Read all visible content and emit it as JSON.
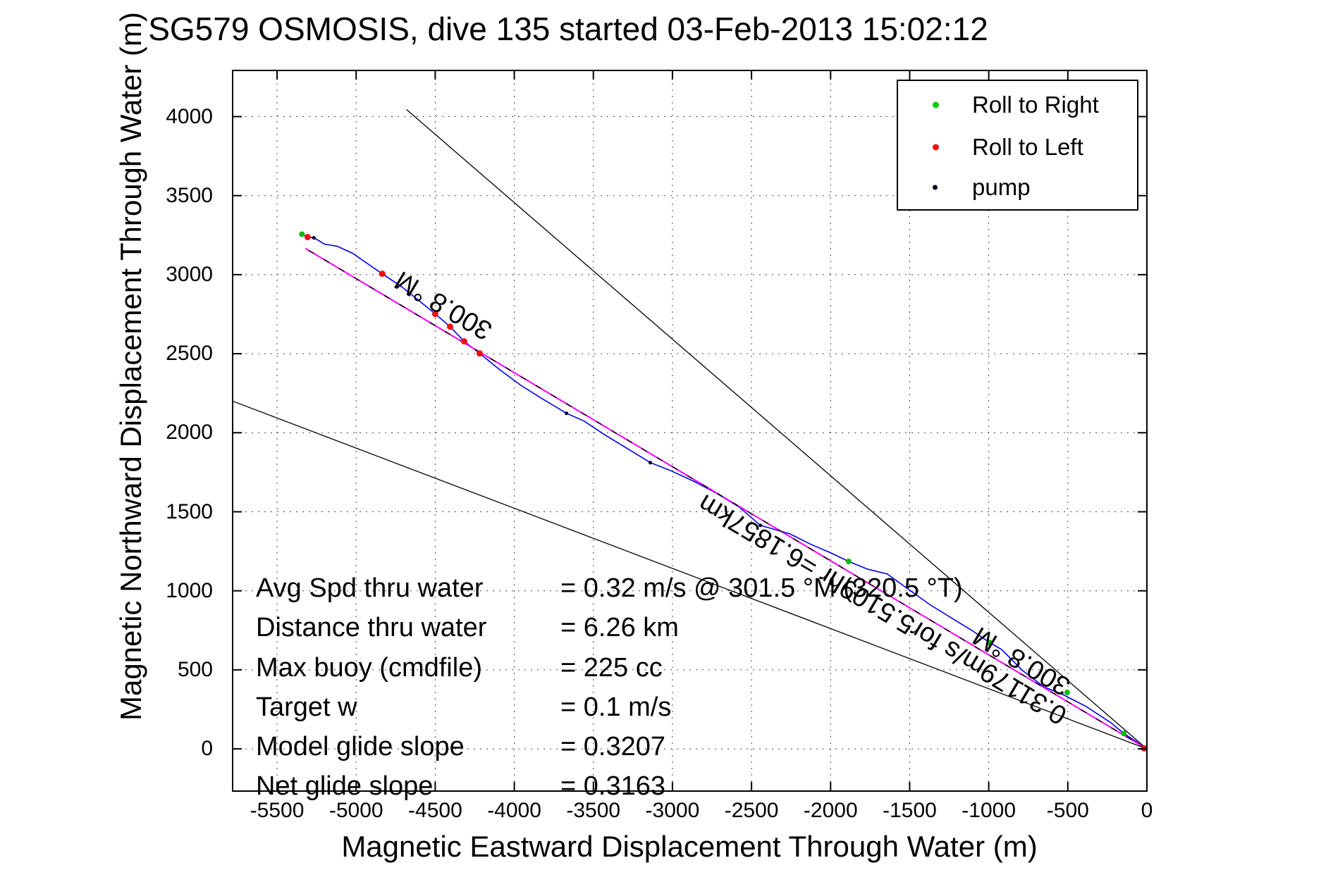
{
  "title": "SG579 OSMOSIS, dive 135 started 03-Feb-2013 15:02:12",
  "axes": {
    "xlabel": "Magnetic Eastward Displacement Through Water (m)",
    "ylabel": "Magnetic Northward Displacement Through Water (m)",
    "xticks": [
      -5500,
      -5000,
      -4500,
      -4000,
      -3500,
      -3000,
      -2500,
      -2000,
      -1500,
      -1000,
      -500,
      0
    ],
    "yticks": [
      0,
      500,
      1000,
      1500,
      2000,
      2500,
      3000,
      3500,
      4000
    ],
    "xlim": [
      -5781,
      0
    ],
    "ylim": [
      -267,
      4292
    ],
    "grid": true
  },
  "legend": {
    "items": [
      {
        "label": "Roll to Right",
        "color": "#00cc00",
        "dot": 9
      },
      {
        "label": "Roll to Left",
        "color": "#ee1111",
        "dot": 9
      },
      {
        "label": "pump",
        "color": "#000022",
        "dot": 7
      }
    ]
  },
  "stats": {
    "rows": [
      {
        "label": "Avg Spd thru water",
        "value": "=  0.32 m/s @ 301.5 °M (320.5 °T)"
      },
      {
        "label": "Distance thru water",
        "value": "=  6.26 km"
      },
      {
        "label": "Max buoy (cmdfile)",
        "value": "= 225 cc"
      },
      {
        "label": "Target w",
        "value": "= 0.1 m/s"
      },
      {
        "label": "Model glide slope",
        "value": "= 0.3207"
      },
      {
        "label": "Net glide slope",
        "value": "= 0.3163"
      }
    ]
  },
  "chart_data": {
    "type": "line",
    "title": "SG579 OSMOSIS, dive 135 started 03-Feb-2013 15:02:12",
    "xlabel": "Magnetic Eastward Displacement Through Water (m)",
    "ylabel": "Magnetic Northward Displacement Through Water (m)",
    "xlim": [
      -5781,
      0
    ],
    "ylim": [
      -267,
      4292
    ],
    "xticks": [
      -5500,
      -5000,
      -4500,
      -4000,
      -3500,
      -3000,
      -2500,
      -2000,
      -1500,
      -1000,
      -500,
      0
    ],
    "yticks": [
      0,
      500,
      1000,
      1500,
      2000,
      2500,
      3000,
      3500,
      4000
    ],
    "legend_position": "upper-right",
    "series": [
      {
        "name": "track-through-water",
        "color": "#0000ee",
        "width": 1.6,
        "points": [
          [
            -4,
            0
          ],
          [
            -71,
            49
          ],
          [
            -147,
            98
          ],
          [
            -227,
            165
          ],
          [
            -384,
            268
          ],
          [
            -540,
            348
          ],
          [
            -651,
            392
          ],
          [
            -785,
            495
          ],
          [
            -919,
            629
          ],
          [
            -995,
            673
          ],
          [
            -1106,
            749
          ],
          [
            -1231,
            825
          ],
          [
            -1374,
            914
          ],
          [
            -1499,
            1003
          ],
          [
            -1641,
            1106
          ],
          [
            -1766,
            1137
          ],
          [
            -1886,
            1186
          ],
          [
            -1998,
            1240
          ],
          [
            -2123,
            1293
          ],
          [
            -2257,
            1360
          ],
          [
            -2444,
            1414
          ],
          [
            -2578,
            1530
          ],
          [
            -2725,
            1619
          ],
          [
            -2859,
            1690
          ],
          [
            -3015,
            1762
          ],
          [
            -3140,
            1811
          ],
          [
            -3292,
            1904
          ],
          [
            -3425,
            1985
          ],
          [
            -3559,
            2074
          ],
          [
            -3670,
            2123
          ],
          [
            -3827,
            2217
          ],
          [
            -3960,
            2301
          ],
          [
            -4094,
            2400
          ],
          [
            -4219,
            2502
          ],
          [
            -4317,
            2578
          ],
          [
            -4406,
            2671
          ],
          [
            -4500,
            2752
          ],
          [
            -4598,
            2832
          ],
          [
            -4710,
            2922
          ],
          [
            -4835,
            3006
          ],
          [
            -4946,
            3082
          ],
          [
            -5022,
            3135
          ],
          [
            -5120,
            3180
          ],
          [
            -5200,
            3193
          ],
          [
            -5267,
            3234
          ],
          [
            -5307,
            3238
          ],
          [
            -5343,
            3256
          ]
        ]
      },
      {
        "name": "desired-course-300.8M",
        "color": "#ff00ff",
        "width": 2,
        "overlay_dash_color": "#000000",
        "points": [
          [
            0,
            0
          ],
          [
            -5321,
            3166
          ]
        ]
      },
      {
        "name": "bearing-fan-upper",
        "color": "#000000",
        "width": 1.3,
        "points": [
          [
            0,
            0
          ],
          [
            -4682,
            4045
          ]
        ]
      },
      {
        "name": "bearing-fan-lower",
        "color": "#000000",
        "width": 1.3,
        "points": [
          [
            0,
            0
          ],
          [
            -5781,
            2200
          ]
        ]
      }
    ],
    "markers": {
      "roll_to_right": {
        "color": "#00bb00",
        "r": 4,
        "points": [
          [
            -5343,
            3256
          ],
          [
            -1886,
            1186
          ],
          [
            -995,
            673
          ],
          [
            -504,
            357
          ],
          [
            -147,
            98
          ]
        ]
      },
      "roll_to_left": {
        "color": "#ee1111",
        "r": 4.5,
        "points": [
          [
            -5307,
            3238
          ],
          [
            -4835,
            3006
          ],
          [
            -4500,
            2752
          ],
          [
            -4406,
            2671
          ],
          [
            -4317,
            2578
          ],
          [
            -4219,
            2502
          ],
          [
            -18,
            4
          ]
        ]
      },
      "pump": {
        "color": "#000022",
        "r": 2.6,
        "points": [
          [
            -5267,
            3233
          ],
          [
            -3670,
            2123
          ],
          [
            -3140,
            1811
          ],
          [
            -2444,
            1414
          ]
        ]
      }
    },
    "annotations": [
      {
        "text": "300.8 °M",
        "x": -4128,
        "y": 2679,
        "rotation_deg": -149.2
      },
      {
        "text": "300.8 °M",
        "x": -472,
        "y": 428,
        "rotation_deg": -149.2
      },
      {
        "text": "0.31179m/s for5.5109hr =6.1857km",
        "x": -495,
        "y": 245,
        "rotation_deg": -149.2
      }
    ]
  }
}
